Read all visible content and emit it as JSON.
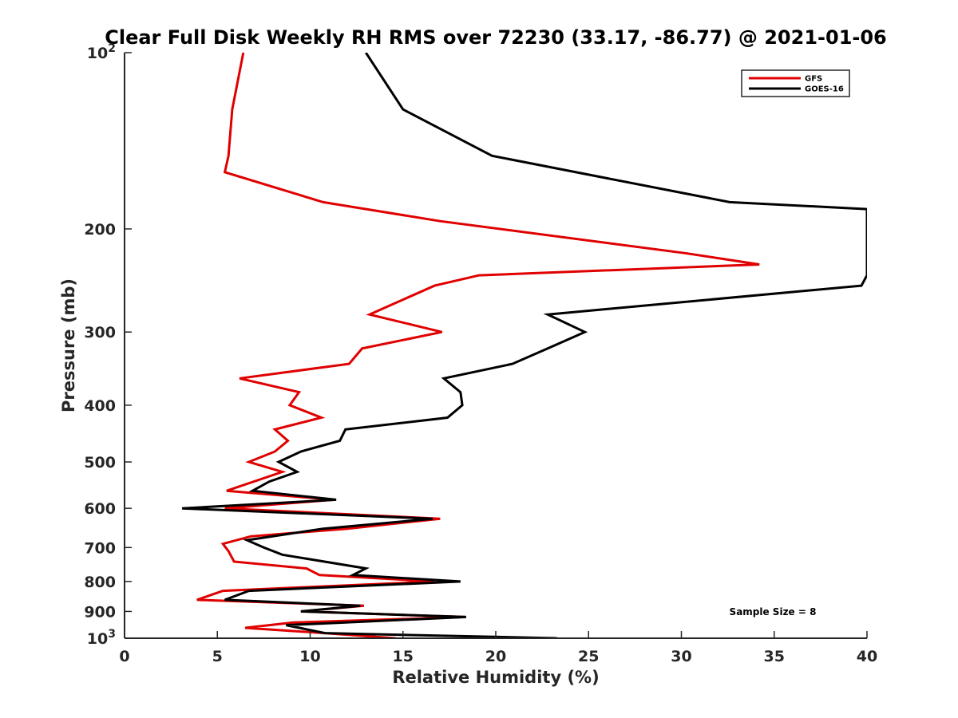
{
  "chart_data": {
    "type": "line",
    "title": "Clear Full Disk Weekly RH RMS over 72230 (33.17, -86.77) @ 2021-01-06",
    "xlabel": "Relative Humidity (%)",
    "ylabel": "Pressure (mb)",
    "xlim": [
      0,
      40
    ],
    "ylim": [
      100,
      1000
    ],
    "y_scale": "log",
    "y_reversed": true,
    "grid": false,
    "x_ticks": [
      0,
      5,
      10,
      15,
      20,
      25,
      30,
      35,
      40
    ],
    "x_tick_labels": [
      "0",
      "5",
      "10",
      "15",
      "20",
      "25",
      "30",
      "35",
      "40"
    ],
    "y_ticks": [
      100,
      200,
      300,
      400,
      500,
      600,
      700,
      800,
      900,
      1000
    ],
    "y_tick_labels": [
      {
        "base": "10",
        "exp": "2"
      },
      {
        "text": "200"
      },
      {
        "text": "300"
      },
      {
        "text": "400"
      },
      {
        "text": "500"
      },
      {
        "text": "600"
      },
      {
        "text": "700"
      },
      {
        "text": "800"
      },
      {
        "text": "900"
      },
      {
        "base": "10",
        "exp": "3"
      }
    ],
    "legend_position": "top-right",
    "annotation": "Sample Size = 8",
    "series": [
      {
        "name": "GFS",
        "color": "#e00000",
        "points": [
          [
            6.4,
            100
          ],
          [
            5.8,
            125
          ],
          [
            5.6,
            150
          ],
          [
            5.4,
            160
          ],
          [
            10.7,
            180
          ],
          [
            17,
            194
          ],
          [
            30.2,
            220
          ],
          [
            34.2,
            230
          ],
          [
            19.1,
            240
          ],
          [
            16.7,
            250
          ],
          [
            13.2,
            280
          ],
          [
            17.1,
            300
          ],
          [
            12.8,
            320
          ],
          [
            12.1,
            340
          ],
          [
            6.2,
            360
          ],
          [
            9.4,
            380
          ],
          [
            8.9,
            400
          ],
          [
            10.6,
            420
          ],
          [
            8.1,
            440
          ],
          [
            8.8,
            460
          ],
          [
            8.1,
            480
          ],
          [
            6.7,
            500
          ],
          [
            8.5,
            520
          ],
          [
            5.5,
            560
          ],
          [
            11.3,
            580
          ],
          [
            5.4,
            600
          ],
          [
            17,
            625
          ],
          [
            12,
            650
          ],
          [
            6.8,
            670
          ],
          [
            5.3,
            690
          ],
          [
            5.6,
            710
          ],
          [
            5.9,
            740
          ],
          [
            9.8,
            760
          ],
          [
            10.5,
            780
          ],
          [
            16.7,
            800
          ],
          [
            5.3,
            830
          ],
          [
            3.9,
            860
          ],
          [
            12.9,
            880
          ],
          [
            9.5,
            900
          ],
          [
            18.4,
            920
          ],
          [
            9.1,
            940
          ],
          [
            6.5,
            960
          ],
          [
            10.8,
            980
          ],
          [
            14.6,
            1000
          ]
        ]
      },
      {
        "name": "GOES-16",
        "color": "#000000",
        "points": [
          [
            13,
            100
          ],
          [
            15,
            125
          ],
          [
            19.8,
            150
          ],
          [
            32.6,
            180
          ],
          [
            40,
            185
          ],
          [
            40,
            240
          ],
          [
            39.7,
            250
          ],
          [
            22.8,
            280
          ],
          [
            24.8,
            300
          ],
          [
            22.8,
            320
          ],
          [
            20.9,
            340
          ],
          [
            17.2,
            360
          ],
          [
            18.1,
            380
          ],
          [
            18.2,
            400
          ],
          [
            17.4,
            420
          ],
          [
            11.9,
            440
          ],
          [
            11.6,
            460
          ],
          [
            9.5,
            480
          ],
          [
            8.3,
            500
          ],
          [
            9.3,
            520
          ],
          [
            7.8,
            540
          ],
          [
            6.9,
            560
          ],
          [
            11.4,
            580
          ],
          [
            3.1,
            600
          ],
          [
            16.6,
            625
          ],
          [
            10.7,
            650
          ],
          [
            6.6,
            680
          ],
          [
            7.5,
            700
          ],
          [
            8.5,
            720
          ],
          [
            13,
            760
          ],
          [
            12.3,
            780
          ],
          [
            18.1,
            800
          ],
          [
            6.7,
            830
          ],
          [
            5.4,
            860
          ],
          [
            12.7,
            880
          ],
          [
            9.5,
            900
          ],
          [
            18.4,
            920
          ],
          [
            8.7,
            950
          ],
          [
            10.8,
            980
          ],
          [
            23.3,
            1000
          ]
        ]
      }
    ]
  }
}
